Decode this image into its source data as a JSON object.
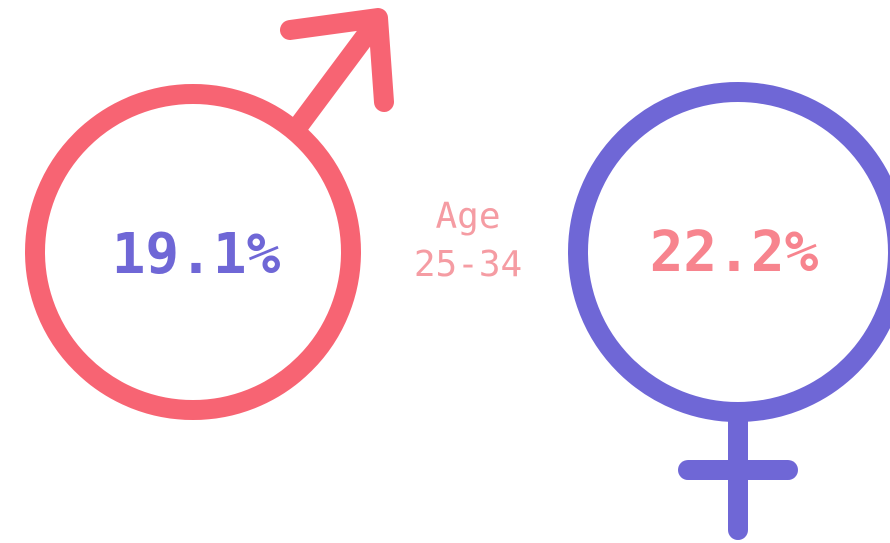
{
  "male": {
    "value": "19.1%"
  },
  "female": {
    "value": "22.2%"
  },
  "age_group": {
    "line1": "Age",
    "line2": "25-34"
  }
}
